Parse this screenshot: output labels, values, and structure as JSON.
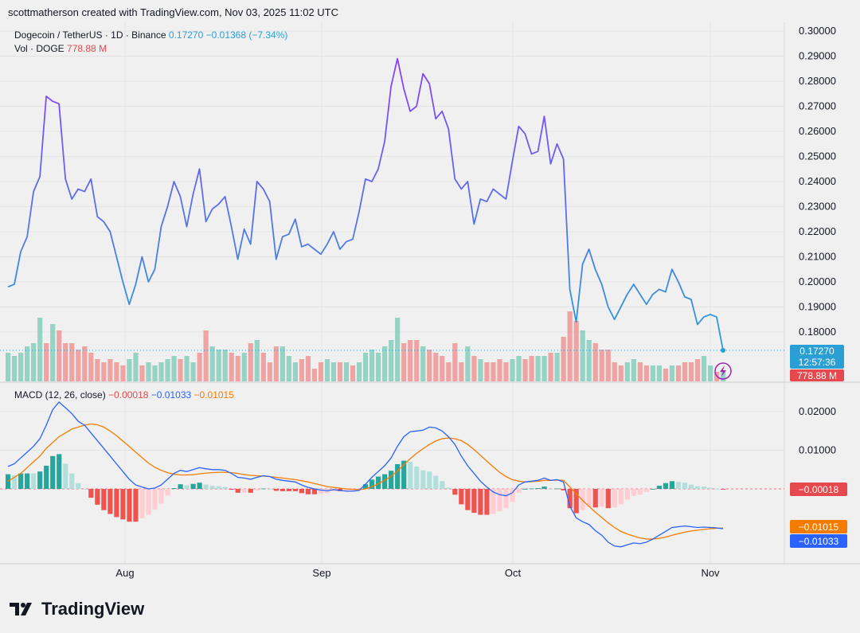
{
  "header": {
    "credit": "scottmatherson created with TradingView.com, Nov 03, 2025 11:02 UTC"
  },
  "legend": {
    "symbol": "Dogecoin / TetherUS · 1D · Binance",
    "last": "0.17270",
    "change": "−0.01368 (−7.34%)",
    "vol_label": "Vol · DOGE",
    "vol_value": "778.88 M",
    "macd_label": "MACD (12, 26, close)",
    "macd_hist": "−0.00018",
    "macd_line": "−0.01033",
    "macd_signal": "−0.01015"
  },
  "price_axis": {
    "ticks": [
      "0.30000",
      "0.29000",
      "0.28000",
      "0.27000",
      "0.26000",
      "0.25000",
      "0.24000",
      "0.23000",
      "0.22000",
      "0.21000",
      "0.20000",
      "0.19000",
      "0.18000"
    ],
    "last_label": "0.17270",
    "countdown": "12:57:36",
    "vol_label": "778.88 M"
  },
  "macd_axis": {
    "ticks": [
      "0.02000",
      "0.01000"
    ],
    "hist_label": "−0.00018",
    "signal_label": "−0.01015",
    "macd_label": "−0.01033"
  },
  "x_axis": {
    "labels": [
      "Aug",
      "Sep",
      "Oct",
      "Nov"
    ]
  },
  "footer": {
    "brand": "TradingView"
  },
  "colors": {
    "line_blue": "#2a9fd6",
    "line_purple": "#8a3ffc",
    "vol_up": "#8ccfc0",
    "vol_down": "#ef9a9a",
    "macd_line": "#2962ff",
    "signal": "#f57c00",
    "hist_up_strong": "#26a69a",
    "hist_up_weak": "#b2dfdb",
    "hist_down_strong": "#ef5350",
    "hist_down_weak": "#ffcdd2",
    "label_red": "#e5484d"
  },
  "chart_data": {
    "type": "line",
    "title": "Dogecoin / TetherUS · 1D · Binance",
    "x_range": [
      "2025-07-07",
      "2025-11-03"
    ],
    "x_ticks": [
      "Aug",
      "Sep",
      "Oct",
      "Nov"
    ],
    "ylim": [
      0.165,
      0.302
    ],
    "series": [
      {
        "name": "Dogecoin / TetherUS",
        "values": [
          0.198,
          0.199,
          0.212,
          0.218,
          0.236,
          0.242,
          0.274,
          0.272,
          0.271,
          0.241,
          0.233,
          0.237,
          0.236,
          0.241,
          0.226,
          0.224,
          0.22,
          0.21,
          0.2,
          0.191,
          0.199,
          0.21,
          0.2,
          0.205,
          0.222,
          0.23,
          0.24,
          0.234,
          0.222,
          0.235,
          0.245,
          0.224,
          0.229,
          0.231,
          0.234,
          0.222,
          0.209,
          0.221,
          0.215,
          0.24,
          0.237,
          0.232,
          0.209,
          0.218,
          0.219,
          0.225,
          0.214,
          0.215,
          0.213,
          0.211,
          0.215,
          0.22,
          0.213,
          0.216,
          0.217,
          0.228,
          0.241,
          0.24,
          0.245,
          0.256,
          0.278,
          0.289,
          0.277,
          0.268,
          0.27,
          0.283,
          0.279,
          0.265,
          0.268,
          0.261,
          0.241,
          0.237,
          0.24,
          0.223,
          0.233,
          0.232,
          0.237,
          0.235,
          0.233,
          0.248,
          0.262,
          0.259,
          0.251,
          0.252,
          0.266,
          0.247,
          0.255,
          0.249,
          0.197,
          0.184,
          0.207,
          0.213,
          0.205,
          0.199,
          0.19,
          0.185,
          0.19,
          0.195,
          0.199,
          0.195,
          0.191,
          0.195,
          0.197,
          0.196,
          0.205,
          0.2,
          0.194,
          0.193,
          0.183,
          0.186,
          0.187,
          0.186,
          0.1727
        ]
      }
    ],
    "volume": {
      "name": "Vol · DOGE",
      "last": 778.88,
      "values": [
        0.45,
        0.4,
        0.45,
        0.55,
        0.6,
        1,
        0.6,
        0.9,
        0.8,
        0.6,
        0.6,
        0.5,
        0.55,
        0.45,
        0.35,
        0.3,
        0.35,
        0.3,
        0.25,
        0.35,
        0.45,
        0.25,
        0.3,
        0.25,
        0.3,
        0.35,
        0.4,
        0.35,
        0.4,
        0.3,
        0.45,
        0.8,
        0.55,
        0.5,
        0.5,
        0.45,
        0.4,
        0.45,
        0.6,
        0.65,
        0.45,
        0.3,
        0.55,
        0.55,
        0.4,
        0.3,
        0.35,
        0.4,
        0.2,
        0.3,
        0.35,
        0.3,
        0.3,
        0.3,
        0.25,
        0.3,
        0.45,
        0.5,
        0.45,
        0.55,
        0.65,
        1,
        0.6,
        0.65,
        0.65,
        0.55,
        0.5,
        0.45,
        0.4,
        0.3,
        0.6,
        0.3,
        0.55,
        0.4,
        0.35,
        0.3,
        0.3,
        0.35,
        0.3,
        0.35,
        0.4,
        0.35,
        0.4,
        0.4,
        0.4,
        0.45,
        0.45,
        0.7,
        1.1,
        0.95,
        0.8,
        0.65,
        0.6,
        0.5,
        0.5,
        0.3,
        0.25,
        0.3,
        0.35,
        0.3,
        0.25,
        0.25,
        0.25,
        0.2,
        0.25,
        0.25,
        0.3,
        0.3,
        0.35,
        0.4,
        0.25,
        0.15,
        0.15
      ],
      "up": [
        1,
        1,
        1,
        1,
        1,
        1,
        0,
        1,
        0,
        0,
        0,
        0,
        0,
        0,
        0,
        0,
        0,
        0,
        0,
        1,
        1,
        0,
        1,
        1,
        1,
        1,
        1,
        0,
        1,
        1,
        0,
        0,
        1,
        1,
        1,
        0,
        0,
        1,
        0,
        1,
        0,
        0,
        0,
        1,
        1,
        1,
        0,
        0,
        0,
        0,
        1,
        1,
        0,
        1,
        0,
        1,
        1,
        1,
        1,
        1,
        1,
        1,
        0,
        0,
        0,
        1,
        0,
        0,
        0,
        0,
        0,
        0,
        1,
        0,
        1,
        0,
        0,
        0,
        0,
        1,
        1,
        0,
        0,
        1,
        1,
        0,
        1,
        0,
        0,
        0,
        1,
        1,
        0,
        0,
        0,
        0,
        0,
        1,
        1,
        0,
        0,
        1,
        1,
        0,
        1,
        0,
        0,
        0,
        0,
        1,
        1,
        0,
        1
      ]
    },
    "macd": {
      "name": "MACD (12, 26, close)",
      "ylim": [
        -0.0155,
        0.0245
      ],
      "macd_values": [
        0.0058,
        0.0065,
        0.008,
        0.0095,
        0.011,
        0.013,
        0.0165,
        0.0205,
        0.0225,
        0.021,
        0.0195,
        0.0175,
        0.0165,
        0.0145,
        0.0125,
        0.0105,
        0.0085,
        0.0065,
        0.0045,
        0.0025,
        0.001,
        0.0005,
        0.0,
        0.0002,
        0.001,
        0.0025,
        0.004,
        0.0048,
        0.0045,
        0.005,
        0.0055,
        0.0052,
        0.005,
        0.005,
        0.0048,
        0.004,
        0.003,
        0.0028,
        0.0025,
        0.003,
        0.0034,
        0.0032,
        0.0025,
        0.0022,
        0.002,
        0.0018,
        0.001,
        0.0004,
        0.0,
        -0.0003,
        -0.0005,
        -0.0002,
        -0.0004,
        -0.0006,
        -0.0006,
        -0.0004,
        0.0012,
        0.003,
        0.0045,
        0.006,
        0.008,
        0.011,
        0.0135,
        0.0148,
        0.015,
        0.0152,
        0.016,
        0.0158,
        0.015,
        0.0135,
        0.0115,
        0.0085,
        0.006,
        0.004,
        0.002,
        0.0005,
        -0.0008,
        -0.0015,
        -0.0018,
        -0.001,
        0.001,
        0.0018,
        0.002,
        0.0022,
        0.0028,
        0.0022,
        0.0024,
        0.0018,
        -0.0045,
        -0.0075,
        -0.0085,
        -0.0092,
        -0.0108,
        -0.012,
        -0.0138,
        -0.0148,
        -0.015,
        -0.0145,
        -0.014,
        -0.0142,
        -0.0138,
        -0.013,
        -0.012,
        -0.011,
        -0.01,
        -0.0098,
        -0.0096,
        -0.0098,
        -0.01,
        -0.0099,
        -0.01,
        -0.0101,
        -0.01033
      ],
      "signal_values": [
        0.002,
        0.003,
        0.004,
        0.0055,
        0.007,
        0.0085,
        0.0105,
        0.012,
        0.0135,
        0.0145,
        0.0155,
        0.016,
        0.0165,
        0.0168,
        0.0166,
        0.016,
        0.015,
        0.0138,
        0.0124,
        0.011,
        0.0095,
        0.0081,
        0.0067,
        0.0056,
        0.0048,
        0.0042,
        0.0038,
        0.0036,
        0.0036,
        0.0037,
        0.0039,
        0.0041,
        0.0042,
        0.0043,
        0.0043,
        0.0042,
        0.004,
        0.0037,
        0.0035,
        0.0034,
        0.0033,
        0.0032,
        0.003,
        0.0028,
        0.0026,
        0.0024,
        0.0021,
        0.0018,
        0.0014,
        0.001,
        0.0006,
        0.0004,
        0.0002,
        0.0,
        -0.0001,
        -0.0002,
        0.0,
        0.0006,
        0.0013,
        0.0022,
        0.0033,
        0.0046,
        0.0062,
        0.0078,
        0.0092,
        0.0104,
        0.0115,
        0.0124,
        0.013,
        0.0132,
        0.013,
        0.0125,
        0.0115,
        0.0102,
        0.0087,
        0.0072,
        0.0057,
        0.0043,
        0.0032,
        0.0024,
        0.002,
        0.0018,
        0.0019,
        0.002,
        0.0022,
        0.0022,
        0.0023,
        0.0022,
        0.0005,
        -0.0012,
        -0.003,
        -0.0045,
        -0.006,
        -0.0074,
        -0.0088,
        -0.01,
        -0.011,
        -0.0117,
        -0.0122,
        -0.0127,
        -0.013,
        -0.013,
        -0.0128,
        -0.0125,
        -0.012,
        -0.0116,
        -0.0112,
        -0.0109,
        -0.0107,
        -0.0105,
        -0.0103,
        -0.0102,
        -0.01015
      ]
    }
  }
}
